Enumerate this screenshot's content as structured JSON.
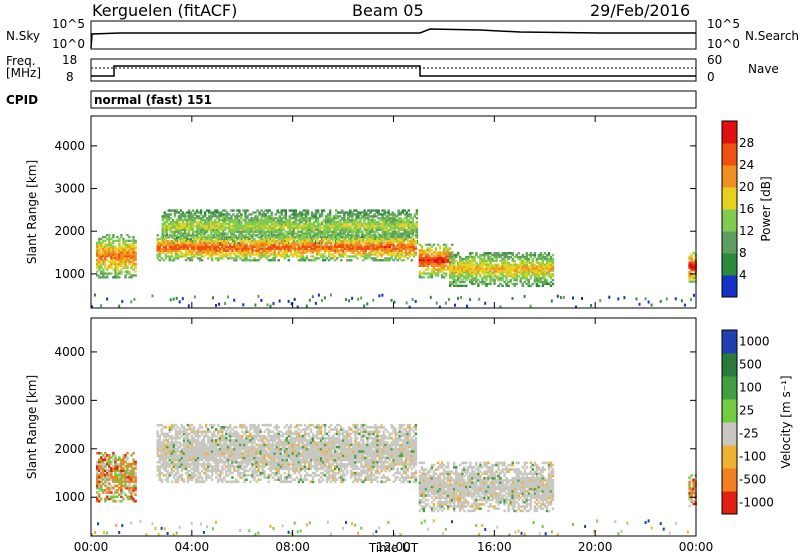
{
  "header": {
    "radar": "Kerguelen (fitACF)",
    "beam": "Beam 05",
    "date": "29/Feb/2016"
  },
  "top_panels": {
    "nsky_label": "N.Sky",
    "nsearch_label": "N.Search",
    "freq_label": "Freq.",
    "freq_unit": "[MHz]",
    "nave_label": "Nave",
    "cpid_label": "CPID",
    "cpid_value": "normal (fast) 151",
    "noise_ticks": [
      "10^5",
      "10^0"
    ],
    "freq_ticks": [
      "18",
      "8"
    ],
    "nave_ticks": [
      "60",
      "0"
    ]
  },
  "chart_data": [
    {
      "type": "heatmap",
      "title": "Power",
      "ylabel": "Slant Range [km]",
      "xlabel": "Time UT",
      "x_ticks": [
        "00:00",
        "04:00",
        "08:00",
        "12:00",
        "16:00",
        "20:00",
        "00:00"
      ],
      "y_ticks": [
        1000,
        2000,
        3000,
        4000
      ],
      "ylim": [
        200,
        4700
      ],
      "xlim_hours": [
        0,
        24
      ],
      "colorbar": {
        "label": "Power [dB]",
        "ticks": [
          4,
          8,
          12,
          16,
          20,
          24,
          28
        ],
        "range": [
          0,
          32
        ],
        "colors": [
          "#1432c8",
          "#2a8a3a",
          "#5fa060",
          "#7fcc50",
          "#e8d020",
          "#f09020",
          "#f05010",
          "#e01010"
        ]
      },
      "regions": [
        {
          "t0": 0.2,
          "t1": 1.8,
          "r_low": 900,
          "r_high": 1900,
          "level": 24
        },
        {
          "t0": 2.8,
          "t1": 12.9,
          "r_low": 1700,
          "r_high": 2500,
          "level": 16
        },
        {
          "t0": 2.6,
          "t1": 12.9,
          "r_low": 1300,
          "r_high": 1900,
          "level": 26
        },
        {
          "t0": 13.0,
          "t1": 14.3,
          "r_low": 900,
          "r_high": 1700,
          "level": 28
        },
        {
          "t0": 14.2,
          "t1": 18.3,
          "r_low": 700,
          "r_high": 1500,
          "level": 20
        },
        {
          "t0": 23.7,
          "t1": 24.0,
          "r_low": 800,
          "r_high": 1500,
          "level": 30
        }
      ]
    },
    {
      "type": "heatmap",
      "title": "Velocity",
      "ylabel": "Slant Range [km]",
      "xlabel": "Time UT",
      "x_ticks": [
        "00:00",
        "04:00",
        "08:00",
        "12:00",
        "16:00",
        "20:00",
        "00:00"
      ],
      "y_ticks": [
        1000,
        2000,
        3000,
        4000
      ],
      "ylim": [
        200,
        4700
      ],
      "xlim_hours": [
        0,
        24
      ],
      "colorbar": {
        "label": "Velocity [m s⁻¹]",
        "ticks": [
          "1000",
          "500",
          "100",
          "25",
          "-25",
          "-100",
          "-500",
          "-1000"
        ],
        "colors": [
          "#2040b0",
          "#2a7a3a",
          "#40a040",
          "#70cc40",
          "#c8c8c0",
          "#f0b030",
          "#f08020",
          "#e02010"
        ]
      },
      "regions": [
        {
          "t0": 0.2,
          "t1": 1.8,
          "r_low": 900,
          "r_high": 1900,
          "class": "mixed"
        },
        {
          "t0": 2.6,
          "t1": 12.9,
          "r_low": 1300,
          "r_high": 2500,
          "class": "ground"
        },
        {
          "t0": 13.0,
          "t1": 18.3,
          "r_low": 700,
          "r_high": 1700,
          "class": "ground"
        },
        {
          "t0": 23.7,
          "t1": 24.0,
          "r_low": 800,
          "r_high": 1500,
          "class": "mixed"
        }
      ]
    }
  ]
}
